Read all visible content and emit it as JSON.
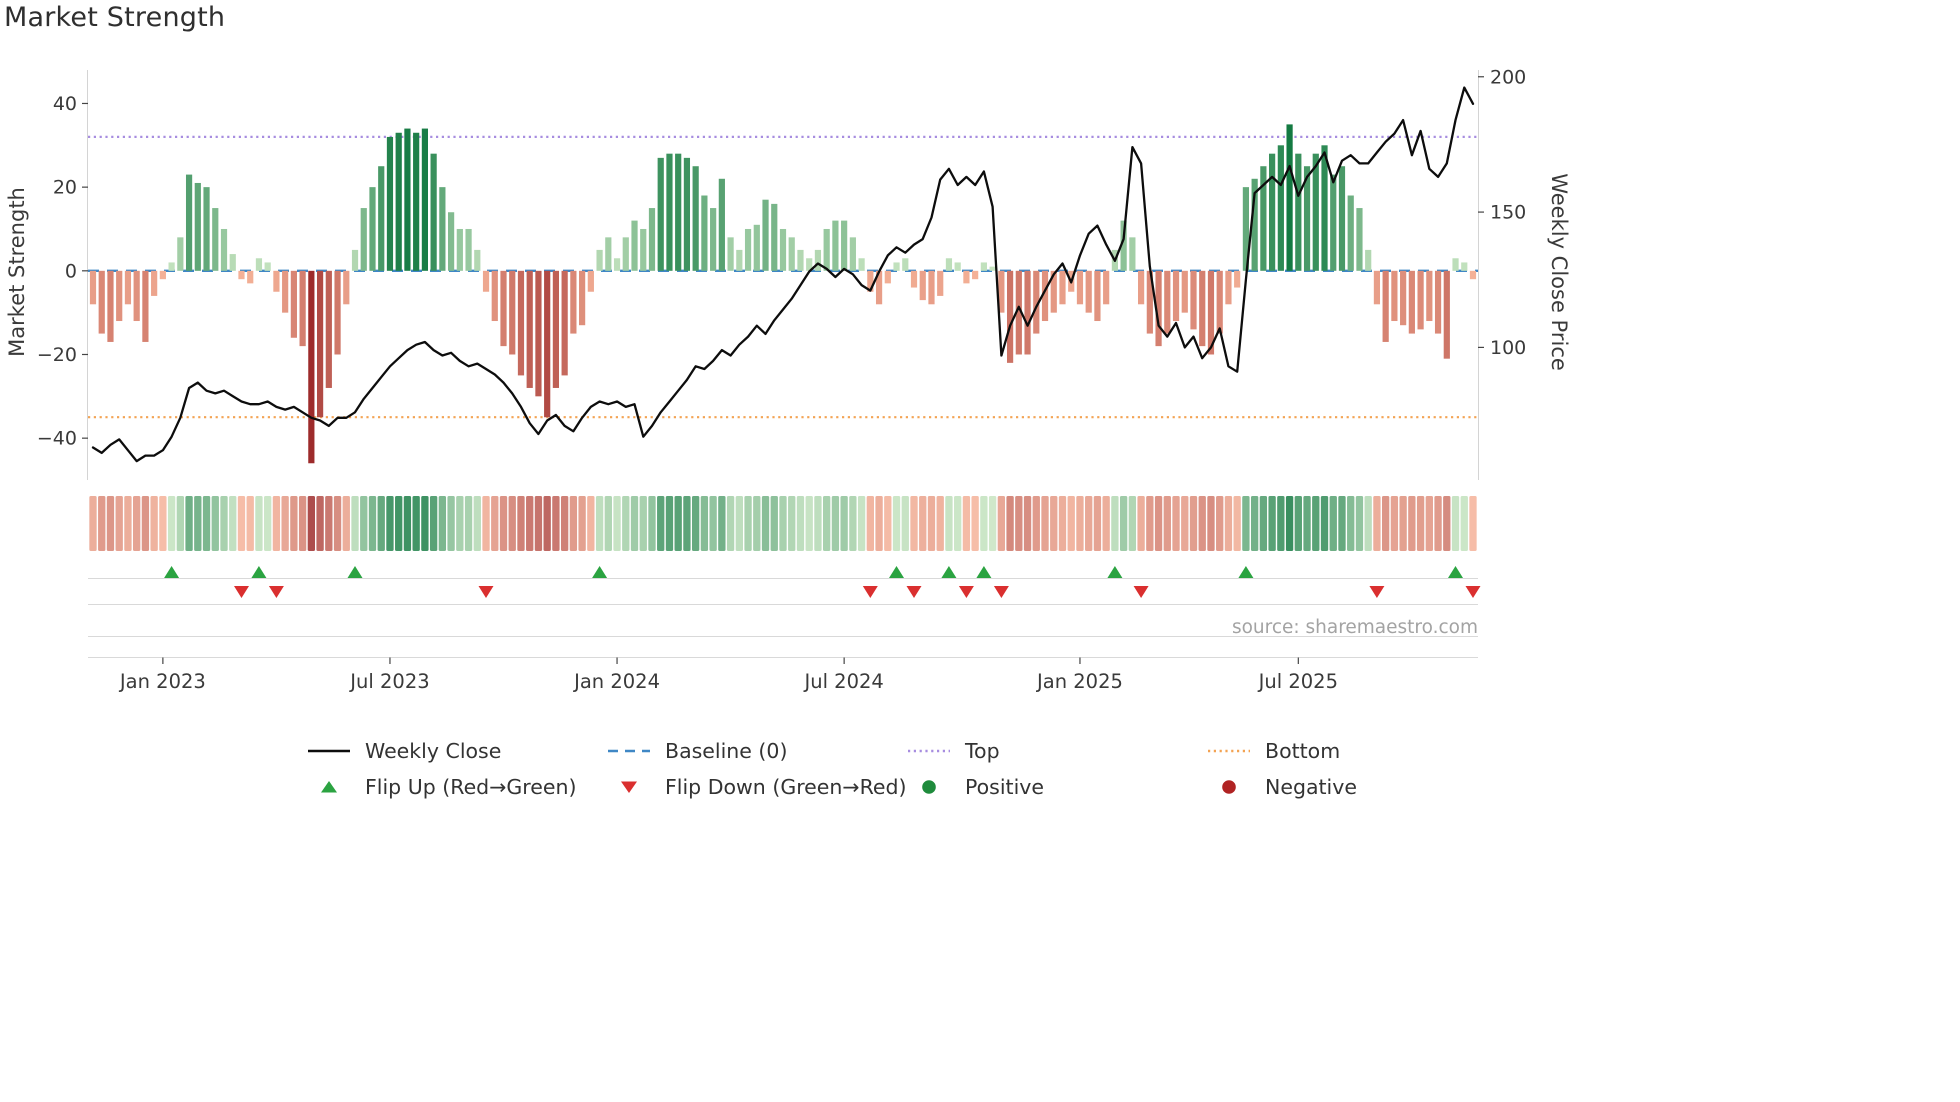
{
  "title": "Market Strength",
  "source": "source: sharemaestro.com",
  "axes": {
    "left_label": "Market Strength",
    "right_label": "Weekly Close Price",
    "left_ticks": [
      {
        "value": 40,
        "label": "40"
      },
      {
        "value": 20,
        "label": "20"
      },
      {
        "value": 0,
        "label": "0"
      },
      {
        "value": -20,
        "label": "−20"
      },
      {
        "value": -40,
        "label": "−40"
      }
    ],
    "right_ticks": [
      {
        "value": 200,
        "label": "200"
      },
      {
        "value": 150,
        "label": "150"
      },
      {
        "value": 100,
        "label": "100"
      }
    ]
  },
  "colors": {
    "line": "#0d0d0d",
    "baseline": "#3f87c5",
    "top": "#a78de0",
    "bottom": "#f3a353",
    "flip_up": "#2ba341",
    "flip_down": "#da2f2f",
    "positive_dot": "#1f8b3c",
    "negative_dot": "#b02323",
    "bar_pos_light": "#cce7c4",
    "bar_pos_dark": "#147a42",
    "bar_neg_light": "#f8b79c",
    "bar_neg_dark": "#9d2b2b"
  },
  "legend": {
    "items": [
      {
        "id": "weekly-close",
        "label": "Weekly Close",
        "swatch": "line",
        "color": "#0d0d0d"
      },
      {
        "id": "baseline",
        "label": "Baseline (0)",
        "swatch": "dashed-line",
        "color": "#3f87c5"
      },
      {
        "id": "top",
        "label": "Top",
        "swatch": "dotted-line",
        "color": "#a78de0"
      },
      {
        "id": "bottom",
        "label": "Bottom",
        "swatch": "dotted-line",
        "color": "#f3a353"
      },
      {
        "id": "flip-up",
        "label": "Flip Up (Red→Green)",
        "swatch": "triangle-up",
        "color": "#2ba341"
      },
      {
        "id": "flip-down",
        "label": "Flip Down (Green→Red)",
        "swatch": "triangle-down",
        "color": "#da2f2f"
      },
      {
        "id": "positive",
        "label": "Positive",
        "swatch": "circle",
        "color": "#1f8b3c"
      },
      {
        "id": "negative",
        "label": "Negative",
        "swatch": "circle",
        "color": "#b02323"
      }
    ]
  },
  "chart_data": {
    "type": "bar+line",
    "title": "Market Strength",
    "x_axis": {
      "start_date": "2022-11-07",
      "step_days": 7,
      "num_weeks": 159,
      "tick_weeks": [
        8,
        34,
        60,
        86,
        113,
        138
      ],
      "tick_labels": [
        "Jan 2023",
        "Jul 2023",
        "Jan 2024",
        "Jul 2024",
        "Jan 2025",
        "Jul 2025"
      ]
    },
    "ylim_left": [
      -50,
      48
    ],
    "ylim_right": [
      51,
      202.5
    ],
    "grid": false,
    "legend_position": "bottom",
    "series": [
      {
        "name": "Market Strength",
        "type": "bar",
        "axis": "left",
        "values": [
          -8,
          -15,
          -17,
          -12,
          -8,
          -12,
          -17,
          -6,
          -2,
          2,
          8,
          23,
          21,
          20,
          15,
          10,
          4,
          -2,
          -3,
          3,
          2,
          -5,
          -10,
          -16,
          -18,
          -46,
          -35,
          -28,
          -20,
          -8,
          5,
          15,
          20,
          25,
          32,
          33,
          34,
          33,
          34,
          28,
          20,
          14,
          10,
          10,
          5,
          -5,
          -12,
          -18,
          -20,
          -25,
          -28,
          -30,
          -35,
          -28,
          -25,
          -15,
          -13,
          -5,
          5,
          8,
          3,
          8,
          12,
          10,
          15,
          27,
          28,
          28,
          27,
          25,
          18,
          15,
          22,
          8,
          5,
          10,
          11,
          17,
          16,
          10,
          8,
          5,
          3,
          5,
          10,
          12,
          12,
          8,
          3,
          -5,
          -8,
          -3,
          2,
          3,
          -4,
          -7,
          -8,
          -6,
          3,
          2,
          -3,
          -2,
          2,
          1,
          -10,
          -22,
          -20,
          -20,
          -15,
          -12,
          -10,
          -8,
          -5,
          -8,
          -10,
          -12,
          -8,
          5,
          12,
          8,
          -8,
          -15,
          -18,
          -15,
          -12,
          -10,
          -14,
          -18,
          -20,
          -15,
          -8,
          -4,
          20,
          22,
          25,
          28,
          30,
          35,
          28,
          25,
          28,
          30,
          23,
          25,
          18,
          15,
          5,
          -8,
          -17,
          -12,
          -13,
          -15,
          -14,
          -12,
          -15,
          -21,
          3,
          2,
          -2
        ]
      },
      {
        "name": "Weekly Close",
        "type": "line",
        "axis": "right",
        "values": [
          63,
          61,
          64,
          66,
          62,
          58,
          60,
          60,
          62,
          67,
          74,
          85,
          87,
          84,
          83,
          84,
          82,
          80,
          79,
          79,
          80,
          78,
          77,
          78,
          76,
          74,
          73,
          71,
          74,
          74,
          76,
          81,
          85,
          89,
          93,
          96,
          99,
          101,
          102,
          99,
          97,
          98,
          95,
          93,
          94,
          92,
          90,
          87,
          83,
          78,
          72,
          68,
          73,
          75,
          71,
          69,
          74,
          78,
          80,
          79,
          80,
          78,
          79,
          67,
          71,
          76,
          80,
          84,
          88,
          93,
          92,
          95,
          99,
          97,
          101,
          104,
          108,
          105,
          110,
          114,
          118,
          123,
          128,
          131,
          129,
          126,
          129,
          127,
          123,
          121,
          128,
          134,
          137,
          135,
          138,
          140,
          148,
          162,
          166,
          160,
          163,
          160,
          165,
          152,
          97,
          108,
          115,
          108,
          115,
          121,
          127,
          131,
          124,
          134,
          142,
          145,
          138,
          132,
          140,
          174,
          168,
          130,
          108,
          104,
          109,
          100,
          104,
          96,
          100,
          107,
          93,
          91,
          125,
          157,
          160,
          163,
          160,
          167,
          156,
          163,
          167,
          172,
          161,
          169,
          171,
          168,
          168,
          172,
          176,
          179,
          184,
          171,
          180,
          166,
          163,
          168,
          184,
          196,
          190
        ]
      }
    ],
    "heatmap": {
      "description": "weekly strength colormap strip below main chart",
      "source_series": "Market Strength"
    },
    "reference_lines": [
      {
        "name": "Baseline (0)",
        "axis": "left",
        "value": 0,
        "style": "dashed",
        "color": "#3f87c5"
      },
      {
        "name": "Top",
        "axis": "left",
        "value": 32,
        "style": "dotted",
        "color": "#a78de0"
      },
      {
        "name": "Bottom",
        "axis": "left",
        "value": -35,
        "style": "dotted",
        "color": "#f3a353"
      }
    ],
    "markers": {
      "flip_up_weeks": [
        9,
        19,
        30,
        58,
        92,
        98,
        102,
        117,
        132,
        156
      ],
      "flip_down_weeks": [
        17,
        21,
        45,
        89,
        94,
        100,
        104,
        120,
        147,
        158
      ]
    }
  }
}
